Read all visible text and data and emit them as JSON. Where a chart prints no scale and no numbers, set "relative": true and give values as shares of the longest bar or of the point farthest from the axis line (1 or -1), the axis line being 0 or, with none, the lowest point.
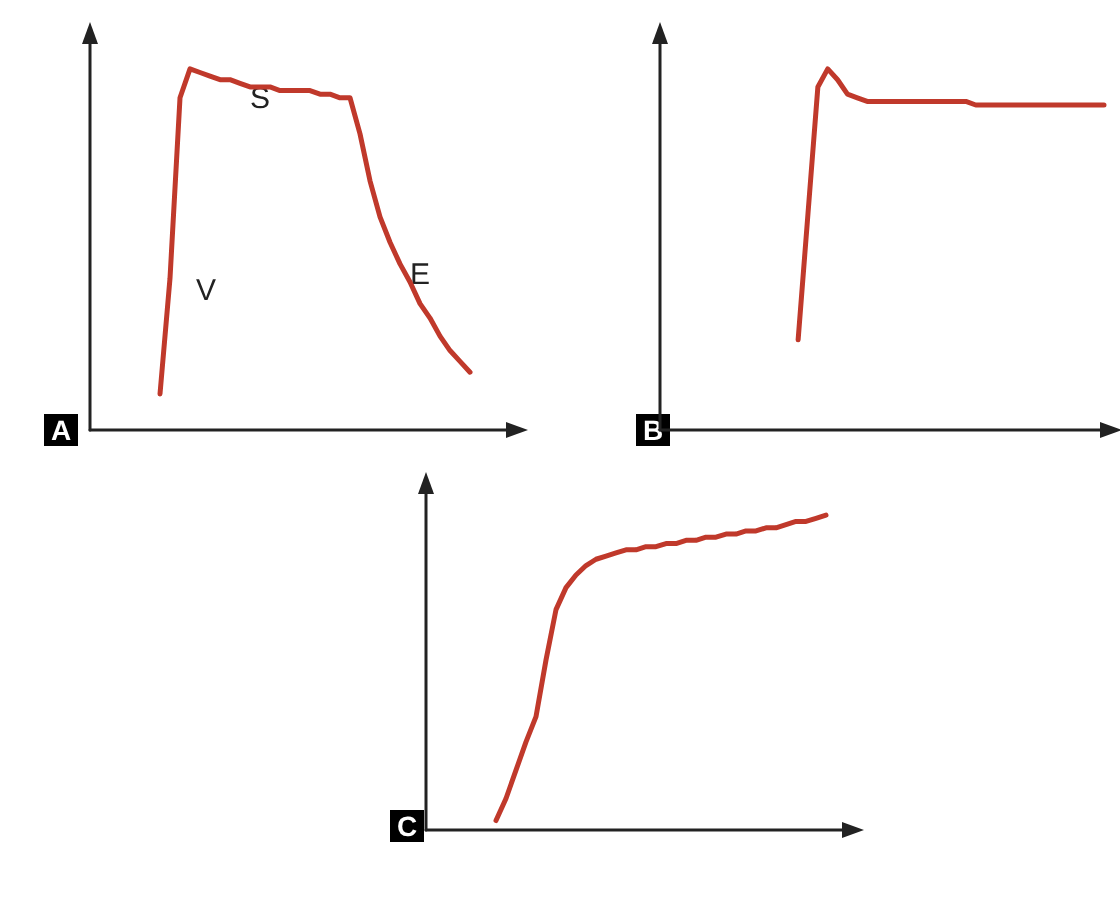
{
  "chart_data": [
    {
      "type": "line",
      "title": "A",
      "relative": true,
      "marker": "none",
      "line_style": "solid",
      "annotations": [
        "V",
        "S",
        "E"
      ],
      "categories": [
        null,
        null,
        null,
        null,
        null,
        null,
        null,
        null,
        null,
        null,
        null,
        null,
        null,
        null,
        null,
        null,
        null,
        null,
        null,
        null,
        null,
        null,
        null,
        null,
        null,
        null,
        null,
        null,
        null,
        null,
        null,
        null,
        null,
        null,
        null,
        null,
        null,
        null,
        null,
        null,
        null,
        null,
        null
      ],
      "series": [
        {
          "color": "#c0392b",
          "values": [
            null,
            null,
            null,
            null,
            null,
            null,
            null,
            0.1,
            0.42,
            0.92,
            1,
            0.99,
            0.98,
            0.97,
            0.97,
            0.96,
            0.95,
            0.95,
            0.95,
            0.94,
            0.94,
            0.94,
            0.94,
            0.93,
            0.93,
            0.92,
            0.92,
            0.82,
            0.69,
            0.59,
            0.52,
            0.46,
            0.41,
            0.35,
            0.31,
            0.26,
            0.22,
            0.19,
            0.16,
            null,
            null,
            null,
            null
          ]
        }
      ]
    },
    {
      "type": "line",
      "title": "B",
      "relative": true,
      "marker": "none",
      "line_style": "solid",
      "categories": [
        null,
        null,
        null,
        null,
        null,
        null,
        null,
        null,
        null,
        null,
        null,
        null,
        null,
        null,
        null,
        null,
        null,
        null,
        null,
        null,
        null,
        null,
        null,
        null,
        null,
        null,
        null,
        null,
        null,
        null,
        null,
        null,
        null,
        null,
        null,
        null,
        null,
        null,
        null,
        null,
        null,
        null,
        null,
        null,
        null,
        null
      ],
      "series": [
        {
          "color": "#c0392b",
          "values": [
            null,
            null,
            null,
            null,
            null,
            null,
            null,
            null,
            null,
            null,
            null,
            null,
            null,
            null,
            0.25,
            0.6,
            0.95,
            1,
            0.97,
            0.93,
            0.92,
            0.91,
            0.91,
            0.91,
            0.91,
            0.91,
            0.91,
            0.91,
            0.91,
            0.91,
            0.91,
            0.91,
            0.9,
            0.9,
            0.9,
            0.9,
            0.9,
            0.9,
            0.9,
            0.9,
            0.9,
            0.9,
            0.9,
            0.9,
            0.9,
            0.9
          ]
        }
      ]
    },
    {
      "type": "line",
      "title": "C",
      "relative": true,
      "marker": "none",
      "line_style": "solid",
      "categories": [
        null,
        null,
        null,
        null,
        null,
        null,
        null,
        null,
        null,
        null,
        null,
        null,
        null,
        null,
        null,
        null,
        null,
        null,
        null,
        null,
        null,
        null,
        null,
        null,
        null,
        null,
        null,
        null,
        null,
        null,
        null,
        null,
        null,
        null,
        null,
        null,
        null,
        null,
        null,
        null,
        null,
        null,
        null
      ],
      "series": [
        {
          "color": "#c0392b",
          "values": [
            null,
            null,
            null,
            null,
            null,
            null,
            null,
            0.03,
            0.1,
            0.19,
            0.28,
            0.36,
            0.54,
            0.7,
            0.77,
            0.81,
            0.84,
            0.86,
            0.87,
            0.88,
            0.89,
            0.89,
            0.9,
            0.9,
            0.91,
            0.91,
            0.92,
            0.92,
            0.93,
            0.93,
            0.94,
            0.94,
            0.95,
            0.95,
            0.96,
            0.96,
            0.97,
            0.98,
            0.98,
            0.99,
            1,
            null,
            null
          ]
        }
      ]
    }
  ]
}
